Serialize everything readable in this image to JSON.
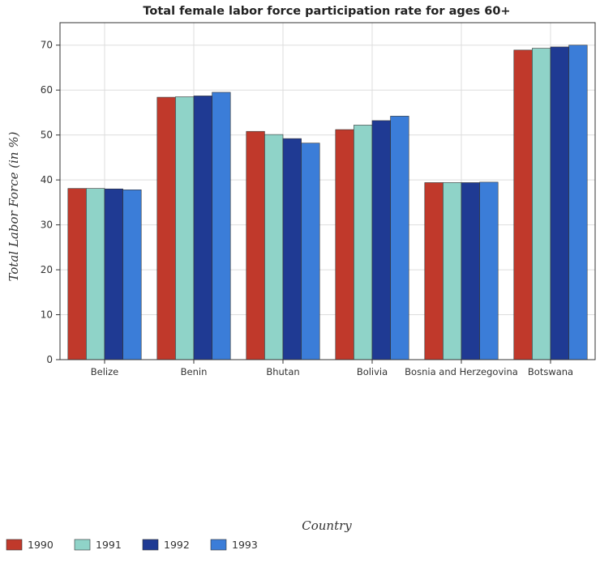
{
  "chart_data": {
    "type": "bar",
    "title": "Total female labor force participation rate for ages 60+",
    "xlabel": "Country",
    "ylabel": "Total Labor Force (in %)",
    "ylim": [
      0,
      75
    ],
    "yticks": [
      0,
      10,
      20,
      30,
      40,
      50,
      60,
      70
    ],
    "grid": true,
    "legend_position": "bottom-left",
    "categories": [
      "Belize",
      "Benin",
      "Bhutan",
      "Bolivia",
      "Bosnia and Herzegovina",
      "Botswana"
    ],
    "series": [
      {
        "name": "1990",
        "color": "#c0392b",
        "values": [
          38.1,
          58.4,
          50.8,
          51.2,
          39.4,
          68.9
        ]
      },
      {
        "name": "1991",
        "color": "#8fd3c8",
        "values": [
          38.1,
          58.5,
          50.1,
          52.2,
          39.4,
          69.3
        ]
      },
      {
        "name": "1992",
        "color": "#1f3a93",
        "values": [
          38.0,
          58.7,
          49.2,
          53.2,
          39.4,
          69.6
        ]
      },
      {
        "name": "1993",
        "color": "#3b7dd8",
        "values": [
          37.8,
          59.5,
          48.2,
          54.2,
          39.5,
          70.0
        ]
      }
    ]
  }
}
